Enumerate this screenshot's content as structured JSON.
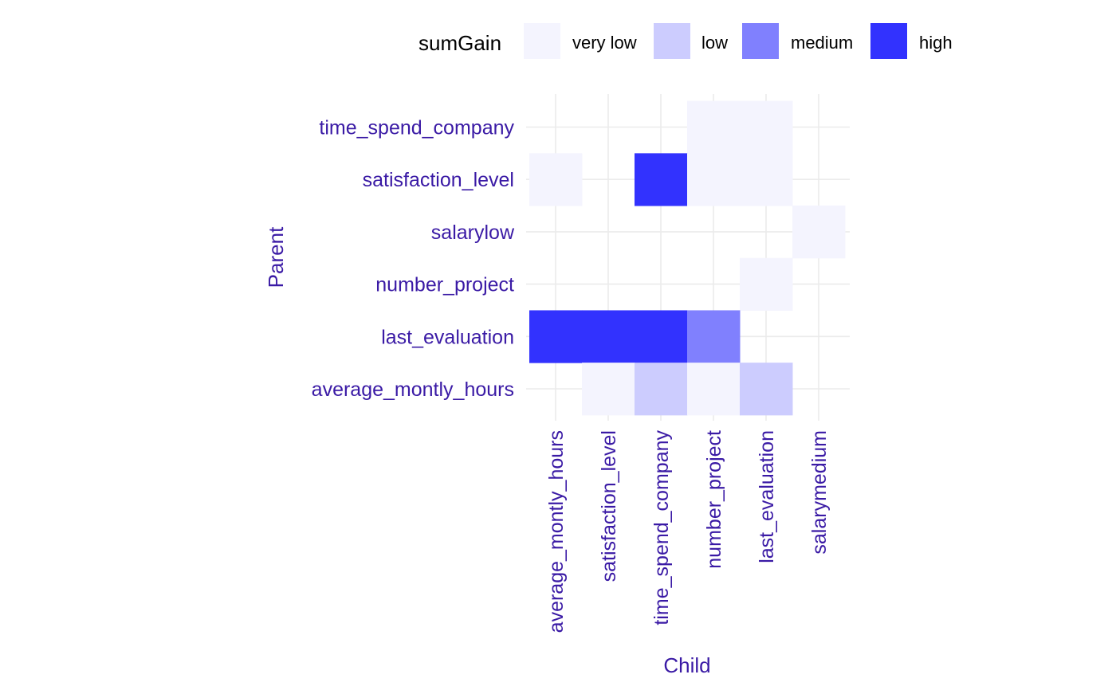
{
  "chart_data": {
    "type": "heatmap",
    "title": "",
    "xlabel": "Child",
    "ylabel": "Parent",
    "x_categories": [
      "average_montly_hours",
      "satisfaction_level",
      "time_spend_company",
      "number_project",
      "last_evaluation",
      "salarymedium"
    ],
    "y_categories": [
      "average_montly_hours",
      "last_evaluation",
      "number_project",
      "salarylow",
      "satisfaction_level",
      "time_spend_company"
    ],
    "legend": {
      "title": "sumGain",
      "placement": "top",
      "levels": [
        {
          "label": "very low",
          "color": "#F4F4FE"
        },
        {
          "label": "low",
          "color": "#CCCCFE"
        },
        {
          "label": "medium",
          "color": "#8080FE"
        },
        {
          "label": "high",
          "color": "#3232FE"
        }
      ]
    },
    "cells": [
      {
        "child": "number_project",
        "parent": "time_spend_company",
        "level": "very low"
      },
      {
        "child": "last_evaluation",
        "parent": "time_spend_company",
        "level": "very low"
      },
      {
        "child": "average_montly_hours",
        "parent": "satisfaction_level",
        "level": "very low"
      },
      {
        "child": "time_spend_company",
        "parent": "satisfaction_level",
        "level": "high"
      },
      {
        "child": "number_project",
        "parent": "satisfaction_level",
        "level": "very low"
      },
      {
        "child": "last_evaluation",
        "parent": "satisfaction_level",
        "level": "very low"
      },
      {
        "child": "salarymedium",
        "parent": "salarylow",
        "level": "very low"
      },
      {
        "child": "last_evaluation",
        "parent": "number_project",
        "level": "very low"
      },
      {
        "child": "average_montly_hours",
        "parent": "last_evaluation",
        "level": "high"
      },
      {
        "child": "satisfaction_level",
        "parent": "last_evaluation",
        "level": "high"
      },
      {
        "child": "time_spend_company",
        "parent": "last_evaluation",
        "level": "high"
      },
      {
        "child": "number_project",
        "parent": "last_evaluation",
        "level": "medium"
      },
      {
        "child": "satisfaction_level",
        "parent": "average_montly_hours",
        "level": "very low"
      },
      {
        "child": "time_spend_company",
        "parent": "average_montly_hours",
        "level": "low"
      },
      {
        "child": "number_project",
        "parent": "average_montly_hours",
        "level": "very low"
      },
      {
        "child": "last_evaluation",
        "parent": "average_montly_hours",
        "level": "low"
      }
    ],
    "grid": true,
    "colors": {
      "axis_text": "#3A1AA5",
      "grid": "#EBEBEB",
      "legend_text": "#000000"
    }
  }
}
